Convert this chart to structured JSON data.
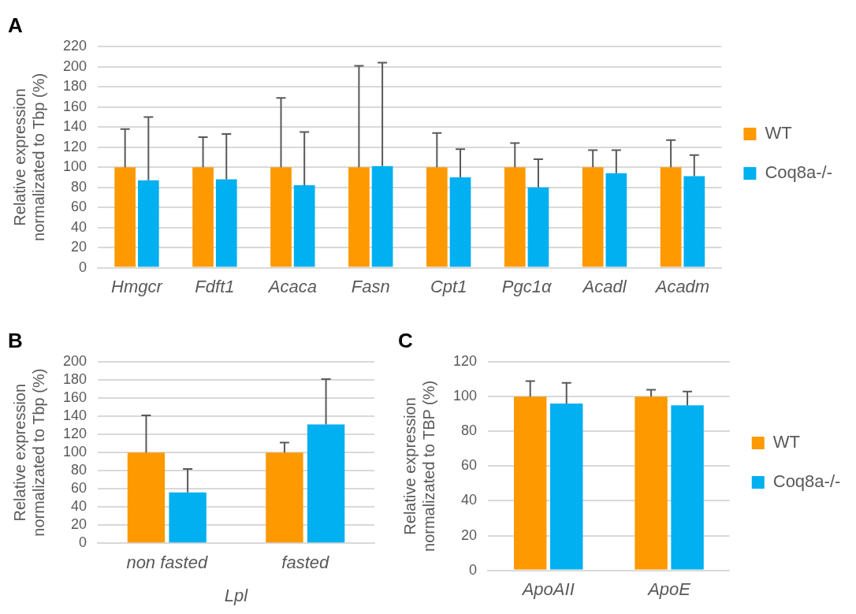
{
  "chart_data": [
    {
      "type": "bar",
      "title": "A",
      "ylabel": "Relative expression normalizated to Tbp (%)",
      "categories": [
        "Hmgcr",
        "Fdft1",
        "Acaca",
        "Fasn",
        "Cpt1",
        "Pgc1α",
        "Acadl",
        "Acadm"
      ],
      "series": [
        {
          "name": "WT",
          "color": "#ff9900",
          "values": [
            100,
            100,
            100,
            100,
            100,
            100,
            100,
            100
          ],
          "errors": [
            [
              100,
              138
            ],
            [
              100,
              130
            ],
            [
              100,
              169
            ],
            [
              100,
              201
            ],
            [
              100,
              134
            ],
            [
              100,
              124
            ],
            [
              100,
              117
            ],
            [
              100,
              127
            ]
          ]
        },
        {
          "name": "Coq8a-/-",
          "color": "#00b0f0",
          "values": [
            87,
            88,
            82,
            101,
            90,
            80,
            94,
            91
          ],
          "errors": [
            [
              87,
              150
            ],
            [
              88,
              133
            ],
            [
              82,
              135
            ],
            [
              101,
              204
            ],
            [
              90,
              118
            ],
            [
              80,
              108
            ],
            [
              94,
              117
            ],
            [
              91,
              112
            ]
          ]
        }
      ],
      "ylim": [
        0,
        220
      ],
      "yticks": [
        0,
        20,
        40,
        60,
        80,
        100,
        120,
        140,
        160,
        180,
        200,
        220
      ],
      "grid": "y",
      "legend": "right"
    },
    {
      "type": "bar",
      "title": "B",
      "ylabel": "Relative expression normalizated to Tbp (%)",
      "xlabel": "Lpl",
      "categories": [
        "non fasted",
        "fasted"
      ],
      "series": [
        {
          "color": "#ff9900",
          "values": [
            100,
            100
          ],
          "errors": [
            [
              100,
              141
            ],
            [
              100,
              111
            ]
          ]
        },
        {
          "color": "#00b0f0",
          "values": [
            56,
            131
          ],
          "errors": [
            [
              56,
              82
            ],
            [
              131,
              181
            ]
          ]
        }
      ],
      "ylim": [
        0,
        200
      ],
      "yticks": [
        0,
        20,
        40,
        60,
        80,
        100,
        120,
        140,
        160,
        180,
        200
      ],
      "grid": "y",
      "legend": false
    },
    {
      "type": "bar",
      "title": "C",
      "ylabel": "Relative expression normalizated to TBP (%)",
      "categories": [
        "ApoAII",
        "ApoE"
      ],
      "series": [
        {
          "name": "WT",
          "color": "#ff9900",
          "values": [
            100,
            100
          ],
          "errors": [
            [
              100,
              109
            ],
            [
              100,
              104
            ]
          ]
        },
        {
          "name": "Coq8a-/-",
          "color": "#00b0f0",
          "values": [
            96,
            95
          ],
          "errors": [
            [
              96,
              108
            ],
            [
              95,
              103
            ]
          ]
        }
      ],
      "ylim": [
        0,
        120
      ],
      "yticks": [
        0,
        20,
        40,
        60,
        80,
        100,
        120
      ],
      "grid": "y",
      "legend": "right"
    }
  ]
}
